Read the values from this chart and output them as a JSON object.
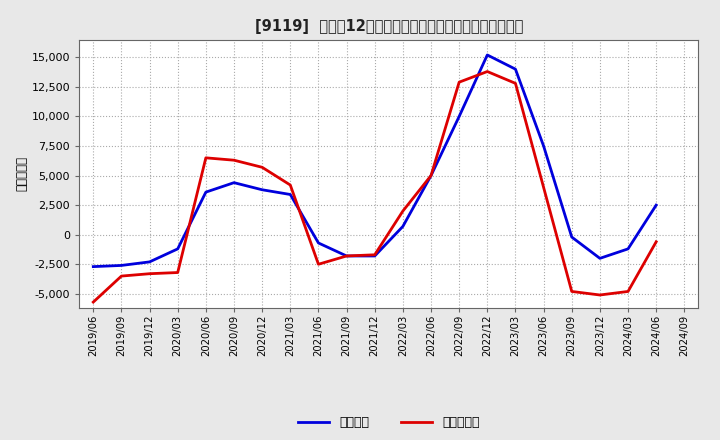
{
  "title": "[9119]  利益だ12か月移動合計の対前年同期増減額の推移",
  "ylabel": "（百万円）",
  "ylim": [
    -6200,
    16500
  ],
  "yticks": [
    -5000,
    -2500,
    0,
    2500,
    5000,
    7500,
    10000,
    12500,
    15000
  ],
  "background_color": "#e8e8e8",
  "plot_bg_color": "#ffffff",
  "grid_color": "#aaaaaa",
  "legend_labels": [
    "経常利益",
    "当期純利益"
  ],
  "line_colors": [
    "#0000dd",
    "#dd0000"
  ],
  "x_labels": [
    "2019/06",
    "2019/09",
    "2019/12",
    "2020/03",
    "2020/06",
    "2020/09",
    "2020/12",
    "2021/03",
    "2021/06",
    "2021/09",
    "2021/12",
    "2022/03",
    "2022/06",
    "2022/09",
    "2022/12",
    "2023/03",
    "2023/06",
    "2023/09",
    "2023/12",
    "2024/03",
    "2024/06",
    "2024/09"
  ],
  "series_operating": [
    -2700,
    -2600,
    -2300,
    -1200,
    3600,
    4400,
    3800,
    3400,
    -700,
    -1800,
    -1800,
    700,
    5000,
    10000,
    15200,
    14000,
    7500,
    -200,
    -2000,
    -1200,
    2500,
    null
  ],
  "series_net": [
    -5700,
    -3500,
    -3300,
    -3200,
    6500,
    6300,
    5700,
    4200,
    -2500,
    -1800,
    -1700,
    2000,
    5000,
    12900,
    13800,
    12800,
    4000,
    -4800,
    -5100,
    -4800,
    -600,
    null
  ]
}
